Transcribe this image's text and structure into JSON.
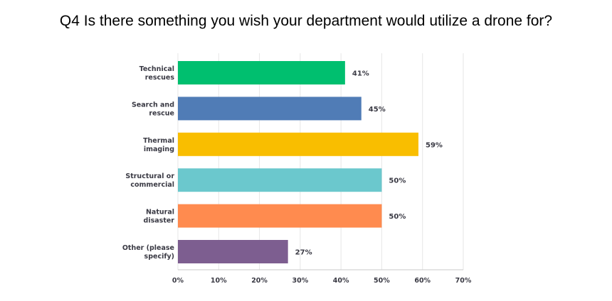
{
  "chart_data": {
    "type": "bar",
    "orientation": "horizontal",
    "title": "Q4 Is there something you wish your department would utilize a drone for?",
    "categories": [
      [
        "Technical",
        "rescues"
      ],
      [
        "Search and",
        "rescue"
      ],
      [
        "Thermal",
        "imaging"
      ],
      [
        "Structural or",
        "commercial"
      ],
      [
        "Natural",
        "disaster"
      ],
      [
        "Other (please",
        "specify)"
      ]
    ],
    "values": [
      41,
      45,
      59,
      50,
      50,
      27
    ],
    "value_labels": [
      "41%",
      "45%",
      "59%",
      "50%",
      "50%",
      "27%"
    ],
    "colors": [
      "#00bf6f",
      "#507cb6",
      "#f9be00",
      "#6bc8cd",
      "#ff8b4f",
      "#7d5e90"
    ],
    "xlim": [
      0,
      70
    ],
    "x_ticks": [
      "0%",
      "10%",
      "20%",
      "30%",
      "40%",
      "50%",
      "60%",
      "70%"
    ],
    "grid": true
  }
}
